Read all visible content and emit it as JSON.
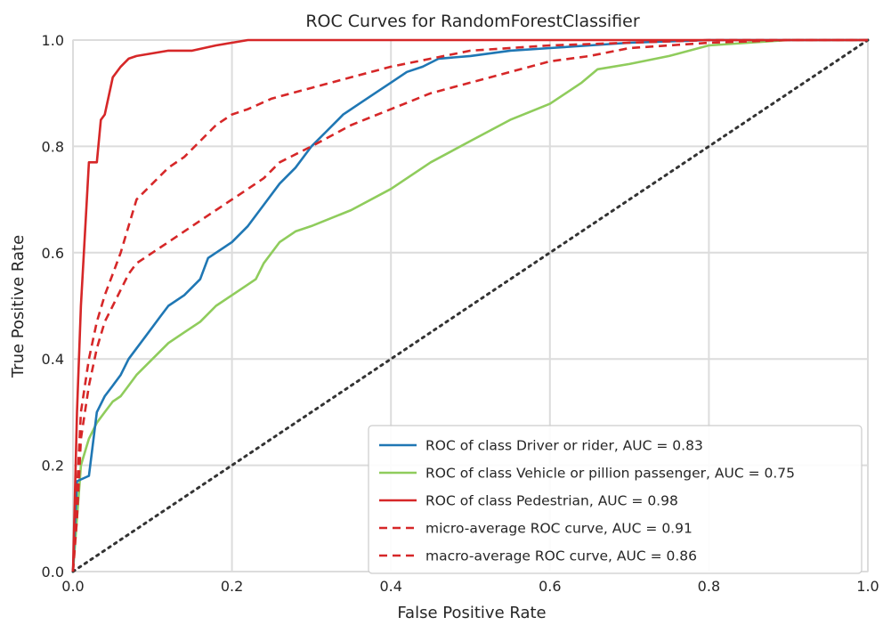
{
  "chart_data": {
    "type": "line",
    "title": "ROC Curves for RandomForestClassifier",
    "xlabel": "False Positive Rate",
    "ylabel": "True Positive Rate",
    "xlim": [
      0,
      1
    ],
    "ylim": [
      0,
      1
    ],
    "xticks": [
      "0.0",
      "0.2",
      "0.4",
      "0.6",
      "0.8",
      "1.0"
    ],
    "yticks": [
      "0.0",
      "0.2",
      "0.4",
      "0.6",
      "0.8",
      "1.0"
    ],
    "grid": true,
    "legend_position": "bottom-right",
    "series": [
      {
        "name": "ROC of class Driver or rider, AUC = 0.83",
        "color": "#1f77b4",
        "style": "solid",
        "x": [
          0.0,
          0.005,
          0.02,
          0.03,
          0.04,
          0.05,
          0.06,
          0.07,
          0.08,
          0.09,
          0.1,
          0.11,
          0.12,
          0.14,
          0.16,
          0.17,
          0.2,
          0.22,
          0.24,
          0.26,
          0.28,
          0.3,
          0.32,
          0.34,
          0.36,
          0.38,
          0.4,
          0.42,
          0.44,
          0.46,
          0.5,
          0.55,
          0.6,
          0.65,
          0.7,
          0.8,
          0.9,
          0.95,
          1.0
        ],
        "y": [
          0.0,
          0.17,
          0.18,
          0.3,
          0.33,
          0.35,
          0.37,
          0.4,
          0.42,
          0.44,
          0.46,
          0.48,
          0.5,
          0.52,
          0.55,
          0.59,
          0.62,
          0.65,
          0.69,
          0.73,
          0.76,
          0.8,
          0.83,
          0.86,
          0.88,
          0.9,
          0.92,
          0.94,
          0.95,
          0.965,
          0.97,
          0.98,
          0.985,
          0.99,
          0.995,
          1.0,
          1.0,
          1.0,
          1.0
        ]
      },
      {
        "name": "ROC of class Vehicle or pillion passenger, AUC = 0.75",
        "color": "#8fcc5c",
        "style": "solid",
        "x": [
          0.0,
          0.005,
          0.01,
          0.02,
          0.03,
          0.04,
          0.05,
          0.06,
          0.07,
          0.08,
          0.1,
          0.12,
          0.14,
          0.16,
          0.18,
          0.2,
          0.22,
          0.23,
          0.24,
          0.26,
          0.28,
          0.3,
          0.35,
          0.4,
          0.45,
          0.5,
          0.55,
          0.6,
          0.62,
          0.64,
          0.66,
          0.7,
          0.75,
          0.8,
          0.9,
          1.0
        ],
        "y": [
          0.0,
          0.1,
          0.2,
          0.25,
          0.28,
          0.3,
          0.32,
          0.33,
          0.35,
          0.37,
          0.4,
          0.43,
          0.45,
          0.47,
          0.5,
          0.52,
          0.54,
          0.55,
          0.58,
          0.62,
          0.64,
          0.65,
          0.68,
          0.72,
          0.77,
          0.81,
          0.85,
          0.88,
          0.9,
          0.92,
          0.945,
          0.955,
          0.97,
          0.99,
          1.0,
          1.0
        ]
      },
      {
        "name": "ROC of class Pedestrian, AUC = 0.98",
        "color": "#d62728",
        "style": "solid",
        "x": [
          0.0,
          0.005,
          0.01,
          0.02,
          0.03,
          0.035,
          0.04,
          0.05,
          0.06,
          0.07,
          0.08,
          0.1,
          0.12,
          0.15,
          0.18,
          0.2,
          0.22,
          0.3,
          1.0
        ],
        "y": [
          0.0,
          0.3,
          0.5,
          0.77,
          0.77,
          0.85,
          0.86,
          0.93,
          0.95,
          0.965,
          0.97,
          0.975,
          0.98,
          0.98,
          0.99,
          0.995,
          1.0,
          1.0,
          1.0
        ]
      },
      {
        "name": "micro-average ROC curve, AUC = 0.91",
        "color": "#d62728",
        "style": "dashed",
        "x": [
          0.0,
          0.005,
          0.01,
          0.02,
          0.03,
          0.04,
          0.05,
          0.06,
          0.07,
          0.08,
          0.1,
          0.12,
          0.14,
          0.16,
          0.18,
          0.2,
          0.22,
          0.25,
          0.3,
          0.35,
          0.4,
          0.45,
          0.5,
          0.6,
          0.7,
          0.8,
          0.9,
          1.0
        ],
        "y": [
          0.0,
          0.15,
          0.3,
          0.4,
          0.47,
          0.52,
          0.56,
          0.6,
          0.65,
          0.7,
          0.73,
          0.76,
          0.78,
          0.81,
          0.84,
          0.86,
          0.87,
          0.89,
          0.91,
          0.93,
          0.95,
          0.965,
          0.98,
          0.99,
          0.995,
          1.0,
          1.0,
          1.0
        ]
      },
      {
        "name": "macro-average ROC curve, AUC = 0.86",
        "color": "#d62728",
        "style": "dashed",
        "x": [
          0.0,
          0.005,
          0.01,
          0.02,
          0.03,
          0.04,
          0.05,
          0.06,
          0.07,
          0.08,
          0.1,
          0.12,
          0.15,
          0.18,
          0.2,
          0.22,
          0.24,
          0.26,
          0.3,
          0.35,
          0.4,
          0.45,
          0.5,
          0.55,
          0.6,
          0.65,
          0.7,
          0.8,
          0.9,
          1.0
        ],
        "y": [
          0.0,
          0.1,
          0.25,
          0.35,
          0.42,
          0.47,
          0.5,
          0.53,
          0.56,
          0.58,
          0.6,
          0.62,
          0.65,
          0.68,
          0.7,
          0.72,
          0.74,
          0.77,
          0.8,
          0.84,
          0.87,
          0.9,
          0.92,
          0.94,
          0.96,
          0.97,
          0.985,
          0.995,
          1.0,
          1.0
        ]
      },
      {
        "name": "",
        "color": "#333333",
        "style": "dotted",
        "x": [
          0,
          1
        ],
        "y": [
          0,
          1
        ]
      }
    ]
  }
}
